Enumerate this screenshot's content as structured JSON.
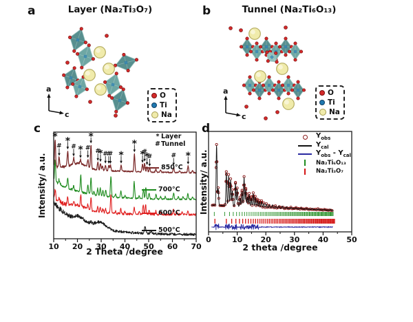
{
  "atom_colors": {
    "O": "#d42a2a",
    "O_edge": "#7a1010",
    "Ti": "#1f78b0",
    "Na": "#f0ebab",
    "Na_edge": "#b5ad62",
    "poly_fill": "#578f8f",
    "poly_fill2": "#6ea7a4",
    "poly_light": "#8fc0bc",
    "poly_edge": "#9cc4c0"
  },
  "panels": {
    "a": {
      "letter": "a",
      "title": "Layer (Na₂Ti₃O₇)",
      "axis": {
        "v": "a",
        "h": "c"
      },
      "legend": [
        {
          "label": "O"
        },
        {
          "label": "Ti"
        },
        {
          "label": "Na"
        }
      ]
    },
    "b": {
      "letter": "b",
      "title": "Tunnel (Na₂Ti₆O₁₃)",
      "axis": {
        "v": "a",
        "h": "c"
      },
      "legend": [
        {
          "label": "O"
        },
        {
          "label": "Ti"
        },
        {
          "label": "Na"
        }
      ]
    },
    "c": {
      "letter": "c"
    },
    "d": {
      "letter": "d"
    }
  },
  "chart_data": [
    {
      "type": "line",
      "panel": "c",
      "xlabel": "2 Theta /degree",
      "ylabel": "Intensity/ a.u.",
      "xlim": [
        10,
        70
      ],
      "xticks": [
        10,
        20,
        30,
        40,
        50,
        60,
        70
      ],
      "grid": false,
      "legend_position": "top-right-inside",
      "peak_legend": {
        "star_symbol": "*",
        "star_label": "Layer",
        "hash_symbol": "#",
        "hash_label": "Tunnel"
      },
      "series": [
        {
          "name": "500°C",
          "color": "#1a1a1a",
          "base": [
            117,
            163,
            12
          ],
          "noise": 1.7,
          "humps": [
            [
              21,
              3,
              8
            ],
            [
              29.5,
              3.5,
              9
            ]
          ],
          "peaks": [
            [
              25.5,
              3,
              0.6
            ],
            [
              48.5,
              9,
              0.5
            ],
            [
              51,
              3,
              0.5
            ]
          ]
        },
        {
          "name": "600°C",
          "color": "#e02020",
          "base": [
            110,
            134,
            10
          ],
          "noise": 1.5,
          "humps": [
            [
              20.5,
              4,
              5
            ]
          ],
          "peaks": [
            [
              10.6,
              14
            ],
            [
              12.3,
              5
            ],
            [
              15.9,
              10
            ],
            [
              18.4,
              5
            ],
            [
              21.4,
              16
            ],
            [
              24.4,
              8
            ],
            [
              25.7,
              18
            ],
            [
              28.5,
              8
            ],
            [
              29.6,
              8
            ],
            [
              30.7,
              5
            ],
            [
              31.8,
              6
            ],
            [
              34.1,
              26
            ],
            [
              36,
              4
            ],
            [
              38.3,
              7
            ],
            [
              40,
              3
            ],
            [
              43.9,
              10
            ],
            [
              46,
              4
            ],
            [
              47.7,
              13
            ],
            [
              48.7,
              15
            ],
            [
              50.2,
              6
            ],
            [
              53,
              5
            ],
            [
              55,
              3
            ],
            [
              60.4,
              7
            ],
            [
              62,
              3
            ],
            [
              64,
              3
            ],
            [
              66.5,
              5
            ]
          ]
        },
        {
          "name": "700°C",
          "color": "#1e8b1e",
          "base": [
            84,
            112,
            12
          ],
          "noise": 1.0,
          "humps": [],
          "peaks": [
            [
              10.6,
              30
            ],
            [
              12.3,
              6
            ],
            [
              15.9,
              16
            ],
            [
              18.4,
              6
            ],
            [
              21.4,
              26
            ],
            [
              24.4,
              12
            ],
            [
              25.7,
              24
            ],
            [
              27,
              5
            ],
            [
              28.5,
              10
            ],
            [
              29.6,
              12
            ],
            [
              30.7,
              8
            ],
            [
              31.9,
              10
            ],
            [
              34.1,
              30
            ],
            [
              36,
              5
            ],
            [
              38.3,
              10
            ],
            [
              40,
              4
            ],
            [
              43.9,
              24
            ],
            [
              46,
              4
            ],
            [
              47.8,
              15
            ],
            [
              48.8,
              17
            ],
            [
              50.2,
              8
            ],
            [
              53.1,
              7
            ],
            [
              55,
              4
            ],
            [
              57,
              4
            ],
            [
              60.5,
              9
            ],
            [
              62.5,
              4
            ],
            [
              64.5,
              4
            ],
            [
              66.5,
              8
            ],
            [
              68.5,
              4
            ]
          ]
        },
        {
          "name": "850°C",
          "color": "#7b2a2a",
          "base": [
            64,
            74,
            25
          ],
          "noise": 0.9,
          "humps": [
            [
              20.5,
              4.5,
              8
            ]
          ],
          "peaks": [
            [
              10.6,
              39
            ],
            [
              12.3,
              14
            ],
            [
              15.9,
              22
            ],
            [
              18.4,
              9
            ],
            [
              21.3,
              6
            ],
            [
              24.4,
              11
            ],
            [
              25.7,
              34
            ],
            [
              28.6,
              11
            ],
            [
              29.7,
              10
            ],
            [
              30.5,
              6
            ],
            [
              31.8,
              8
            ],
            [
              33.2,
              8
            ],
            [
              33.9,
              8
            ],
            [
              38.4,
              9
            ],
            [
              44,
              26
            ],
            [
              47.4,
              11
            ],
            [
              48.3,
              13
            ],
            [
              49.3,
              8
            ],
            [
              50.4,
              6
            ],
            [
              53,
              4
            ],
            [
              55,
              3
            ],
            [
              60.5,
              8
            ],
            [
              63,
              3
            ],
            [
              66.6,
              10
            ],
            [
              68.5,
              3
            ]
          ]
        }
      ],
      "markers": [
        {
          "s": "*",
          "x": 10.6,
          "a": false
        },
        {
          "s": "#",
          "x": 12.3
        },
        {
          "s": "*",
          "x": 15.9
        },
        {
          "s": "#",
          "x": 18.4
        },
        {
          "s": "*",
          "x": 21.3
        },
        {
          "s": "#",
          "x": 24.4
        },
        {
          "s": "*",
          "x": 25.7
        },
        {
          "s": "#",
          "x": 28.6
        },
        {
          "s": "*",
          "x": 29.7
        },
        {
          "s": "#",
          "x": 31.8
        },
        {
          "s": "#",
          "x": 33.2
        },
        {
          "s": "#",
          "x": 33.9
        },
        {
          "s": "*",
          "x": 38.4
        },
        {
          "s": "*",
          "x": 44
        },
        {
          "s": "*",
          "x": 47.4
        },
        {
          "s": "#",
          "x": 48.3
        },
        {
          "s": "*",
          "x": 49.3
        },
        {
          "s": "#",
          "x": 50.4
        },
        {
          "s": "#",
          "x": 60.5
        },
        {
          "s": "*",
          "x": 66.6
        }
      ]
    },
    {
      "type": "rietveld-line-scatter",
      "panel": "d",
      "xlabel": "2 theta /degree",
      "ylabel": "Intensity/ a.u.",
      "xlim": [
        0,
        50
      ],
      "xticks": [
        0,
        10,
        20,
        30,
        40,
        50
      ],
      "grid": false,
      "legend": [
        {
          "marker": "circle",
          "color": "#8b1a1a",
          "main": "Y",
          "sub": "obs"
        },
        {
          "marker": "line",
          "color": "#111111",
          "main": "Y",
          "sub": "cal"
        },
        {
          "marker": "line",
          "color": "#2828a0",
          "main": "Y",
          "sub": "obs",
          "sep": " - ",
          "main2": "Y",
          "sub2": "cal"
        },
        {
          "marker": "tick",
          "color": "#1e8b1e",
          "formula": "Na₂Ti₆O₁₃"
        },
        {
          "marker": "tick",
          "color": "#d41414",
          "formula": "Na₂Ti₃O₇"
        }
      ],
      "obs_peaks": [
        [
          2.8,
          87
        ],
        [
          3.35,
          24
        ],
        [
          6.2,
          48
        ],
        [
          7.0,
          44
        ],
        [
          7.7,
          38
        ],
        [
          8.3,
          22
        ],
        [
          9.4,
          33
        ],
        [
          10.0,
          25
        ],
        [
          11.0,
          12
        ],
        [
          11.7,
          22
        ],
        [
          12.4,
          42
        ],
        [
          13.0,
          25
        ],
        [
          13.6,
          14
        ],
        [
          14.2,
          18
        ],
        [
          14.9,
          13
        ],
        [
          15.6,
          19
        ],
        [
          16.3,
          14
        ],
        [
          17.0,
          10
        ],
        [
          17.7,
          8
        ],
        [
          18.5,
          8
        ],
        [
          19.3,
          6
        ],
        [
          20.2,
          5
        ],
        [
          21.2,
          4
        ],
        [
          22.3,
          4
        ],
        [
          23.4,
          3
        ],
        [
          24.6,
          3
        ],
        [
          25.8,
          3
        ],
        [
          27.2,
          2.5
        ],
        [
          28.8,
          2
        ],
        [
          30.5,
          2
        ],
        [
          32.3,
          1.8
        ],
        [
          34.2,
          1.5
        ],
        [
          36.2,
          1.2
        ],
        [
          38.3,
          1.2
        ],
        [
          40.5,
          1
        ],
        [
          42.5,
          1
        ]
      ],
      "bragg_green": {
        "from": 2.0,
        "to": 43.5,
        "n": 85,
        "gamma": 0.55
      },
      "bragg_red": {
        "from": 2.2,
        "to": 44.0,
        "n": 72,
        "gamma": 0.55
      },
      "diff_regions": [
        [
          2.2,
          3.6,
          6
        ],
        [
          5.8,
          9.8,
          5
        ],
        [
          11,
          17.5,
          4
        ]
      ]
    }
  ]
}
